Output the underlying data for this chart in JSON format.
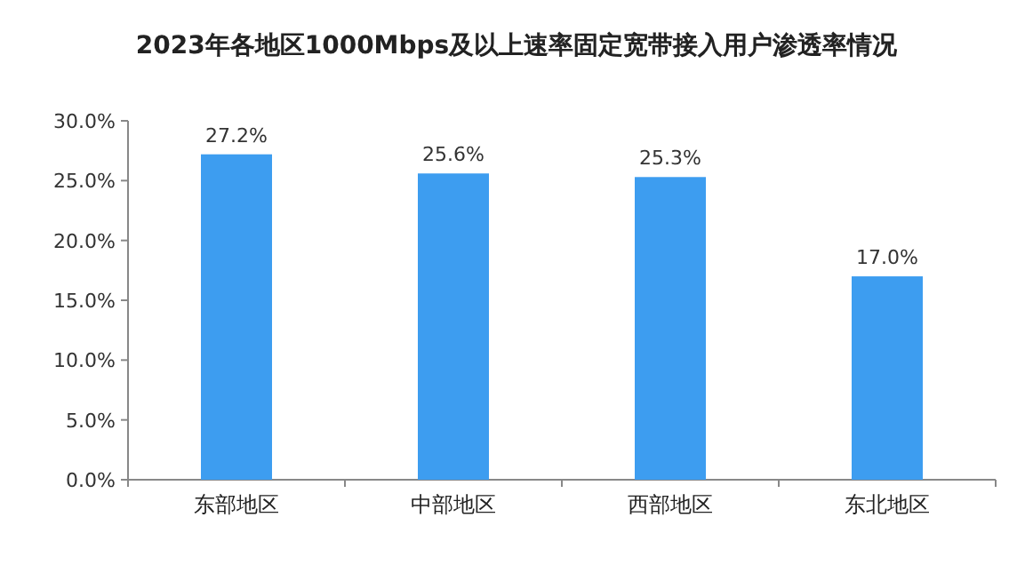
{
  "chart_data": {
    "type": "bar",
    "title": "2023年各地区1000Mbps及以上速率固定宽带接入用户渗透率情况",
    "categories": [
      "东部地区",
      "中部地区",
      "西部地区",
      "东北地区"
    ],
    "values": [
      27.2,
      25.6,
      25.3,
      17.0
    ],
    "value_labels": [
      "27.2%",
      "25.6%",
      "25.3%",
      "17.0%"
    ],
    "color": "#3d9df0",
    "ylim": [
      0,
      30
    ],
    "yticks": [
      {
        "value": 0,
        "label": "0.0%"
      },
      {
        "value": 5,
        "label": "5.0%"
      },
      {
        "value": 10,
        "label": "10.0%"
      },
      {
        "value": 15,
        "label": "15.0%"
      },
      {
        "value": 20,
        "label": "20.0%"
      },
      {
        "value": 25,
        "label": "25.0%"
      },
      {
        "value": 30,
        "label": "30.0%"
      }
    ],
    "grid": false
  }
}
